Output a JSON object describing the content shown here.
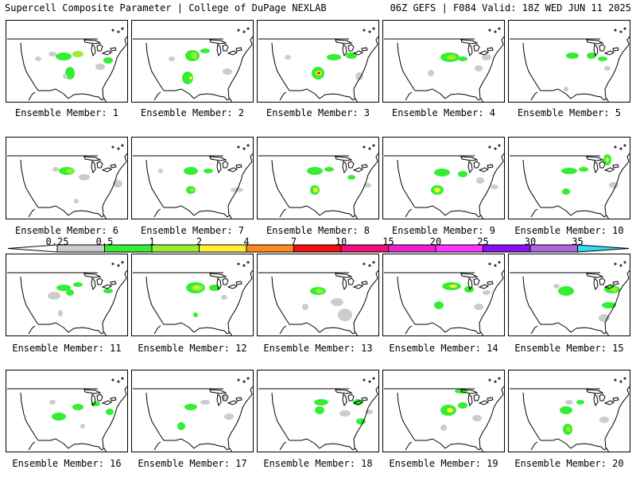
{
  "header": {
    "title_left": "Supercell Composite Parameter | College of DuPage NEXLAB",
    "title_right": "06Z GEFS | F084 Valid: 18Z WED JUN 11 2025"
  },
  "colorbar": {
    "labels": [
      "0.25",
      "0.5",
      "1",
      "2",
      "4",
      "7",
      "10",
      "15",
      "20",
      "25",
      "30",
      "35"
    ],
    "colors": [
      "#cccccc",
      "#33ee33",
      "#99ee33",
      "#ffee33",
      "#ff8822",
      "#ee1111",
      "#ee1177",
      "#ee22cc",
      "#ff33ff",
      "#8811ee",
      "#aa66dd",
      "#33ddee"
    ],
    "under_color": "#ffffff",
    "over_color": "#33ddee"
  },
  "members": [
    {
      "label": "Ensemble Member: 1"
    },
    {
      "label": "Ensemble Member: 2"
    },
    {
      "label": "Ensemble Member: 3"
    },
    {
      "label": "Ensemble Member: 4"
    },
    {
      "label": "Ensemble Member: 5"
    },
    {
      "label": "Ensemble Member: 6"
    },
    {
      "label": "Ensemble Member: 7"
    },
    {
      "label": "Ensemble Member: 8"
    },
    {
      "label": "Ensemble Member: 9"
    },
    {
      "label": "Ensemble Member: 10"
    },
    {
      "label": "Ensemble Member: 11"
    },
    {
      "label": "Ensemble Member: 12"
    },
    {
      "label": "Ensemble Member: 13"
    },
    {
      "label": "Ensemble Member: 14"
    },
    {
      "label": "Ensemble Member: 15"
    },
    {
      "label": "Ensemble Member: 16"
    },
    {
      "label": "Ensemble Member: 17"
    },
    {
      "label": "Ensemble Member: 18"
    },
    {
      "label": "Ensemble Member: 19"
    },
    {
      "label": "Ensemble Member: 20"
    }
  ]
}
